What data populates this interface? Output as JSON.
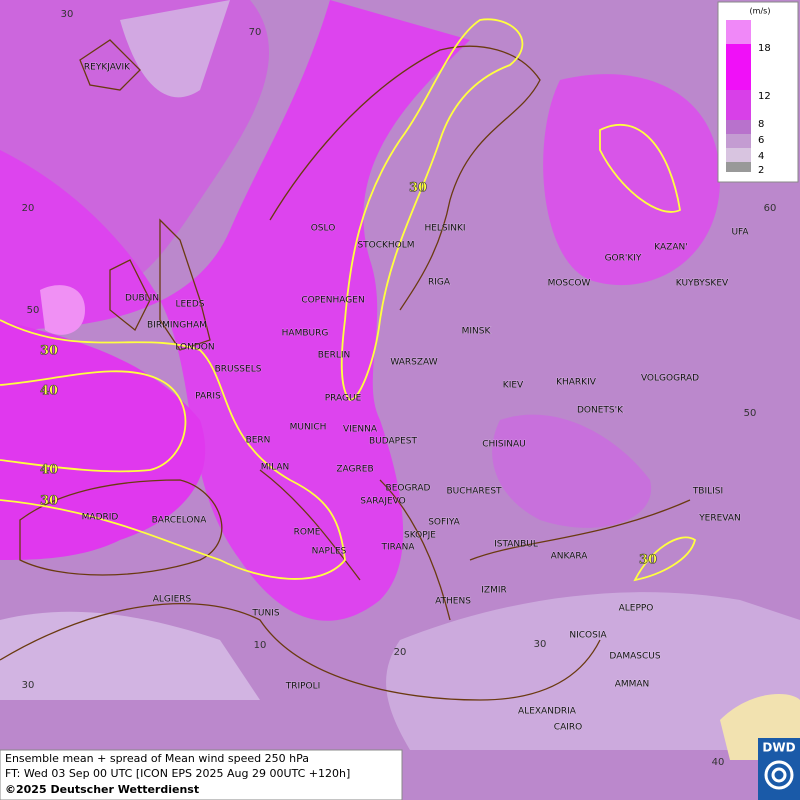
{
  "map": {
    "cities": [
      "REYKJAVIK",
      "OSLO",
      "STOCKHOLM",
      "HELSINKI",
      "DUBLIN",
      "LEEDS",
      "BIRMINGHAM",
      "LONDON",
      "COPENHAGEN",
      "HAMBURG",
      "RIGA",
      "MOSCOW",
      "GOR'KIY",
      "KAZAN'",
      "UFA",
      "KUYBYSKEV",
      "MINSK",
      "BERLIN",
      "WARSZAW",
      "BRUSSELS",
      "PARIS",
      "PRAGUE",
      "KIEV",
      "KHARKIV",
      "VOLGOGRAD",
      "DONETS'K",
      "MUNICH",
      "VIENNA",
      "BERN",
      "BUDAPEST",
      "CHISINAU",
      "MILAN",
      "ZAGREB",
      "BEOGRAD",
      "BUCHAREST",
      "TBILISI",
      "MADRID",
      "BARCELONA",
      "SARAJEVO",
      "SOFIYA",
      "YEREVAN",
      "ROME",
      "SKOPJE",
      "TIRANA",
      "ISTANBUL",
      "ANKARA",
      "NAPLES",
      "ALGIERS",
      "ATHENS",
      "IZMIR",
      "ALEPPO",
      "TUNIS",
      "NICOSIA",
      "DAMASCUS",
      "AMMAN",
      "TRIPOLI",
      "ALEXANDRIA",
      "CAIRO"
    ],
    "grid_labels": [
      30,
      70,
      20,
      60,
      50,
      50,
      30,
      10,
      20,
      30,
      40
    ],
    "contour_labels": [
      30,
      40,
      40,
      30,
      30,
      30
    ]
  },
  "legend": {
    "unit": "(m/s)",
    "levels": [
      18,
      12,
      8,
      6,
      4,
      2
    ]
  },
  "footer": {
    "lines": [
      "Ensemble mean + spread of Mean wind speed 250 hPa",
      "FT: Wed 03 Sep 00 UTC [ICON EPS 2025 Aug 29 00UTC +120h]",
      "©2025 Deutscher Wetterdienst"
    ]
  },
  "logo": {
    "text": "DWD"
  }
}
